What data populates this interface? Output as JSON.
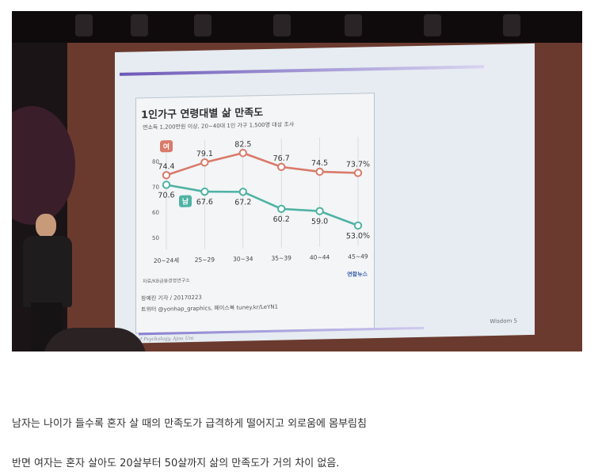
{
  "captions": {
    "line1": "남자는 나이가 들수록 혼자 살 때의 만족도가 급격하게 떨어지고 외로움에 몸부림침",
    "line2": "반면  여자는 혼자 살아도 20살부터 50살까지 삶의 만족도가 거의 차이 없음."
  },
  "slide": {
    "footer_right": "Wisdom 5",
    "footer_left": "Dept. of Psychology, Ajou Uni"
  },
  "chart_card": {
    "source": "자료/KB금융경영연구소",
    "brand": "연합뉴스",
    "credit_line1": "장예진 기자 / 20170223",
    "credit_line2": "트위터 @yonhap_graphics, 페이스북 tuney.kr/LeYN1"
  },
  "chart_data": {
    "type": "line",
    "title": "1인가구 연령대별 삶 만족도",
    "subtitle": "연소득 1,200만원 이상, 20~40대 1인 가구 1,500명 대상 조사",
    "categories": [
      "20~24세",
      "25~29",
      "30~34",
      "35~39",
      "40~44",
      "45~49"
    ],
    "yticks": [
      50,
      60,
      70,
      80
    ],
    "ylim": [
      45,
      88
    ],
    "series": [
      {
        "name": "여",
        "values": [
          74.4,
          79.1,
          82.5,
          76.7,
          74.5,
          73.7
        ],
        "labels": [
          "74.4",
          "79.1",
          "82.5",
          "76.7",
          "74.5",
          "73.7%"
        ],
        "color": "#d97a6a"
      },
      {
        "name": "남",
        "values": [
          70.6,
          67.6,
          67.2,
          60.2,
          59.0,
          53.0
        ],
        "labels": [
          "70.6",
          "67.6",
          "67.2",
          "60.2",
          "59.0",
          "53.0%"
        ],
        "color": "#4fb3a4"
      }
    ]
  }
}
